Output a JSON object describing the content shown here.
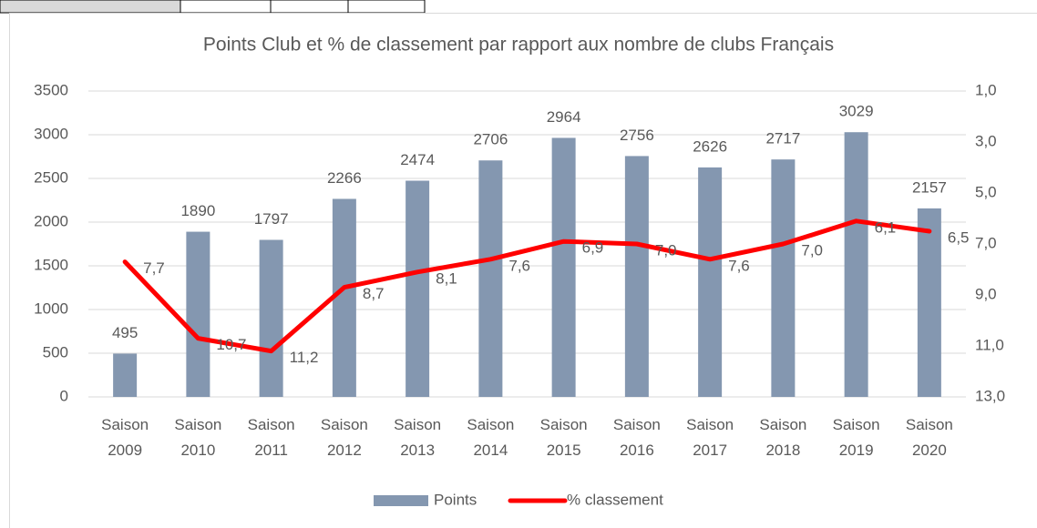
{
  "chart_data": {
    "type": "bar_line",
    "title": "Points Club et % de classement par rapport aux nombre de clubs Français",
    "categories": [
      "Saison 2009",
      "Saison 2010",
      "Saison 2011",
      "Saison 2012",
      "Saison 2013",
      "Saison 2014",
      "Saison 2015",
      "Saison 2016",
      "Saison 2017",
      "Saison 2018",
      "Saison 2019",
      "Saison 2020"
    ],
    "series": [
      {
        "name": "Points",
        "color": "#8497b0",
        "type": "bar",
        "values": [
          495,
          1890,
          1797,
          2266,
          2474,
          2706,
          2964,
          2756,
          2626,
          2717,
          3029,
          2157
        ]
      },
      {
        "name": "% classement",
        "color": "#ff0000",
        "type": "line",
        "axis": "y2",
        "values": [
          7.7,
          10.7,
          11.2,
          8.7,
          8.1,
          7.6,
          6.9,
          7.0,
          7.6,
          7.0,
          6.1,
          6.5
        ],
        "value_labels": [
          "7,7",
          "10,7",
          "11,2",
          "8,7",
          "8,1",
          "7,6",
          "6,9",
          "7,0",
          "7,6",
          "7,0",
          "6,1",
          "6,5"
        ]
      }
    ],
    "ylim": [
      0,
      3500
    ],
    "yticks": [
      0,
      500,
      1000,
      1500,
      2000,
      2500,
      3000,
      3500
    ],
    "y2lim": [
      1,
      13
    ],
    "y2_inverted": true,
    "y2ticks": [
      {
        "value": 1,
        "label": "1,0"
      },
      {
        "value": 3,
        "label": "3,0"
      },
      {
        "value": 5,
        "label": "5,0"
      },
      {
        "value": 7,
        "label": "7,0"
      },
      {
        "value": 9,
        "label": "9,0"
      },
      {
        "value": 11,
        "label": "11,0"
      },
      {
        "value": 13,
        "label": "13,0"
      }
    ],
    "grid": true,
    "legend": "bottom"
  }
}
